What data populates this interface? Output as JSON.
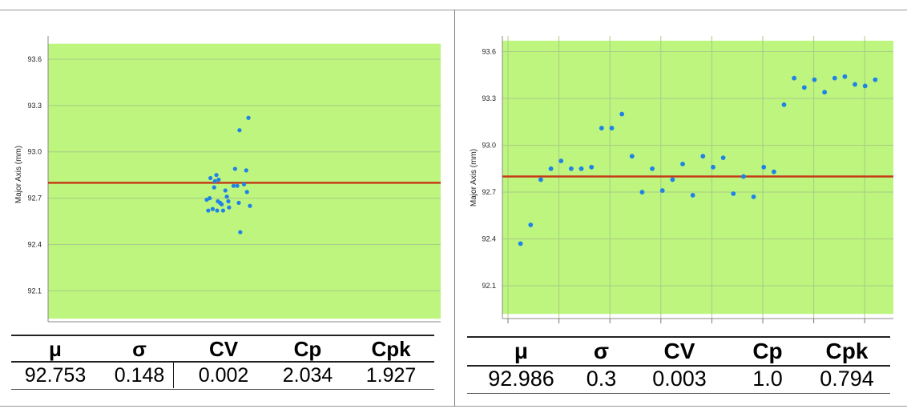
{
  "chart_data": [
    {
      "type": "scatter",
      "title": "",
      "xlabel": "",
      "ylabel": "Major Axis  (mm)",
      "yticks": [
        "92.1",
        "92.4",
        "92.7",
        "93.0",
        "93.3",
        "93.6"
      ],
      "ylim": [
        91.9,
        93.75
      ],
      "spec_band": [
        91.92,
        93.7
      ],
      "mean_line": 92.8,
      "xlim": [
        0,
        1
      ],
      "points": [
        {
          "x": 0.0,
          "y": 92.69
        },
        {
          "x": 0.02,
          "y": 92.62
        },
        {
          "x": 0.04,
          "y": 92.7
        },
        {
          "x": 0.05,
          "y": 92.83
        },
        {
          "x": 0.08,
          "y": 92.63
        },
        {
          "x": 0.1,
          "y": 92.77
        },
        {
          "x": 0.11,
          "y": 92.81
        },
        {
          "x": 0.13,
          "y": 92.85
        },
        {
          "x": 0.14,
          "y": 92.62
        },
        {
          "x": 0.15,
          "y": 92.68
        },
        {
          "x": 0.16,
          "y": 92.82
        },
        {
          "x": 0.18,
          "y": 92.67
        },
        {
          "x": 0.2,
          "y": 92.66
        },
        {
          "x": 0.22,
          "y": 92.62
        },
        {
          "x": 0.25,
          "y": 92.75
        },
        {
          "x": 0.27,
          "y": 92.71
        },
        {
          "x": 0.29,
          "y": 92.68
        },
        {
          "x": 0.3,
          "y": 92.64
        },
        {
          "x": 0.36,
          "y": 92.78
        },
        {
          "x": 0.38,
          "y": 92.89
        },
        {
          "x": 0.41,
          "y": 92.78
        },
        {
          "x": 0.43,
          "y": 92.67
        },
        {
          "x": 0.44,
          "y": 93.14
        },
        {
          "x": 0.45,
          "y": 92.48
        },
        {
          "x": 0.5,
          "y": 92.79
        },
        {
          "x": 0.53,
          "y": 92.88
        },
        {
          "x": 0.54,
          "y": 92.74
        },
        {
          "x": 0.56,
          "y": 93.22
        },
        {
          "x": 0.58,
          "y": 92.65
        }
      ]
    },
    {
      "type": "scatter",
      "title": "",
      "xlabel": "",
      "ylabel": "Major Axis  (mm)",
      "yticks": [
        "92.1",
        "92.4",
        "92.7",
        "93.0",
        "93.3",
        "93.6"
      ],
      "ylim": [
        91.89,
        93.7
      ],
      "spec_band": [
        91.92,
        93.67
      ],
      "mean_line": 92.8,
      "xlim": [
        -1,
        36
      ],
      "points": [
        {
          "x": 0,
          "y": 92.37
        },
        {
          "x": 1,
          "y": 92.49
        },
        {
          "x": 2,
          "y": 92.78
        },
        {
          "x": 3,
          "y": 92.85
        },
        {
          "x": 4,
          "y": 92.9
        },
        {
          "x": 5,
          "y": 92.85
        },
        {
          "x": 6,
          "y": 92.85
        },
        {
          "x": 7,
          "y": 92.86
        },
        {
          "x": 8,
          "y": 93.11
        },
        {
          "x": 9,
          "y": 93.11
        },
        {
          "x": 10,
          "y": 93.2
        },
        {
          "x": 11,
          "y": 92.93
        },
        {
          "x": 12,
          "y": 92.7
        },
        {
          "x": 13,
          "y": 92.85
        },
        {
          "x": 14,
          "y": 92.71
        },
        {
          "x": 15,
          "y": 92.78
        },
        {
          "x": 16,
          "y": 92.88
        },
        {
          "x": 17,
          "y": 92.68
        },
        {
          "x": 18,
          "y": 92.93
        },
        {
          "x": 19,
          "y": 92.86
        },
        {
          "x": 20,
          "y": 92.92
        },
        {
          "x": 21,
          "y": 92.69
        },
        {
          "x": 22,
          "y": 92.8
        },
        {
          "x": 23,
          "y": 92.67
        },
        {
          "x": 24,
          "y": 92.86
        },
        {
          "x": 25,
          "y": 92.83
        },
        {
          "x": 26,
          "y": 93.26
        },
        {
          "x": 27,
          "y": 93.43
        },
        {
          "x": 28,
          "y": 93.37
        },
        {
          "x": 29,
          "y": 93.42
        },
        {
          "x": 30,
          "y": 93.34
        },
        {
          "x": 31,
          "y": 93.43
        },
        {
          "x": 32,
          "y": 93.44
        },
        {
          "x": 33,
          "y": 93.39
        },
        {
          "x": 34,
          "y": 93.38
        },
        {
          "x": 35,
          "y": 93.42
        }
      ]
    }
  ],
  "colors": {
    "spec_band": "#bdf57f",
    "mean_line": "#c53c18",
    "points": "#1f82e6",
    "grid": "#a8cc86"
  },
  "stats_headers": [
    "μ",
    "σ",
    "CV",
    "Cp",
    "Cpk"
  ],
  "left_stats": [
    "92.753",
    "0.148",
    "0.002",
    "2.034",
    "1.927"
  ],
  "right_stats": [
    "92.986",
    "0.3",
    "0.003",
    "1.0",
    "0.794"
  ]
}
